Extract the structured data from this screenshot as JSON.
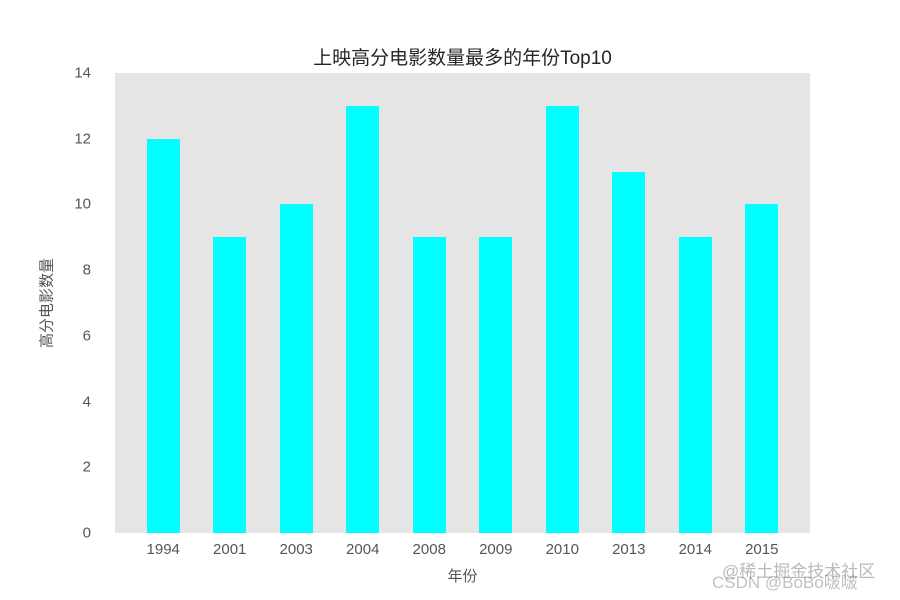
{
  "chart_data": {
    "type": "bar",
    "title": "上映高分电影数量最多的年份Top10",
    "xlabel": "年份",
    "ylabel": "高分电影数量",
    "categories": [
      "1994",
      "2001",
      "2003",
      "2004",
      "2008",
      "2009",
      "2010",
      "2013",
      "2014",
      "2015"
    ],
    "values": [
      12,
      9,
      10,
      13,
      9,
      9,
      13,
      11,
      9,
      10
    ],
    "ylim": [
      0,
      14
    ],
    "yticks": [
      0,
      2,
      4,
      6,
      8,
      10,
      12,
      14
    ],
    "bar_color": "#00ffff",
    "plot_bg": "#e5e5e5",
    "grid": "off",
    "legend": "none"
  },
  "watermark": {
    "line1": "@稀土掘金技术社区",
    "line2": "CSDN @BoBo啵啵"
  }
}
